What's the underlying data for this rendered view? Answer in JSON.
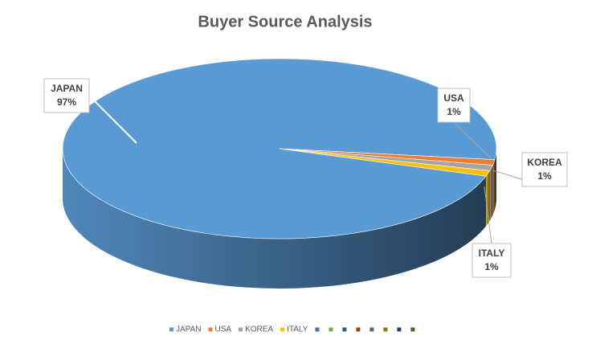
{
  "chart_data": {
    "type": "pie",
    "title": "Buyer Source Analysis",
    "categories": [
      "JAPAN",
      "USA",
      "KOREA",
      "ITALY",
      null,
      null,
      null,
      null,
      null,
      null,
      null,
      null
    ],
    "values": [
      97,
      1,
      1,
      1,
      0,
      0,
      0,
      0,
      0,
      0,
      0,
      0
    ],
    "value_labels": [
      "97%",
      "1%",
      "1%",
      "1%",
      null,
      null,
      null,
      null,
      null,
      null,
      null,
      null
    ],
    "colors": [
      "#5b9bd5",
      "#ed7d31",
      "#a5a5a5",
      "#ffc000",
      "#4472c4",
      "#70ad47",
      "#255e91",
      "#9e480e",
      "#636363",
      "#997300",
      "#264478",
      "#43682b"
    ],
    "legend": "bottom"
  }
}
